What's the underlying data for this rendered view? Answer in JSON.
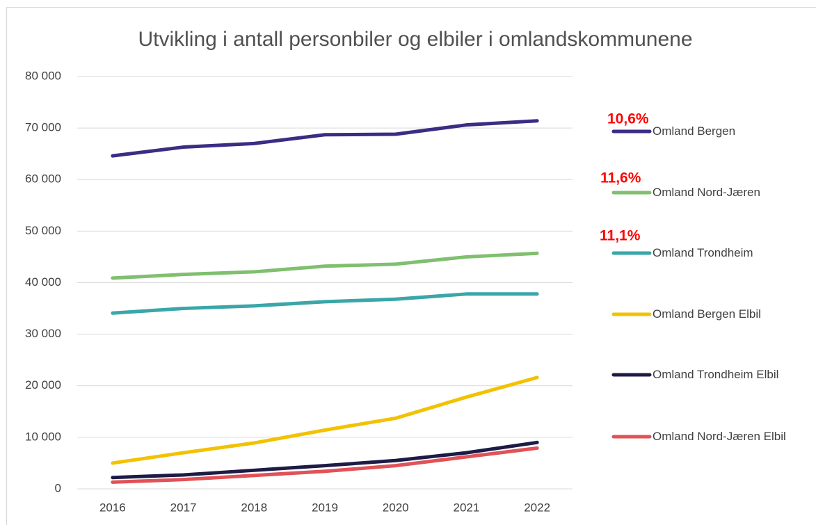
{
  "chart_data": {
    "type": "line",
    "title": "Utvikling i antall personbiler og elbiler i omlandskommunene",
    "categories": [
      "2016",
      "2017",
      "2018",
      "2019",
      "2020",
      "2021",
      "2022"
    ],
    "series": [
      {
        "name": "Omland Bergen",
        "color": "#3a2d84",
        "values": [
          64600,
          66300,
          67000,
          68700,
          68800,
          70600,
          71400
        ]
      },
      {
        "name": "Omland Nord-Jæren",
        "color": "#80bf6f",
        "values": [
          40900,
          41600,
          42100,
          43200,
          43600,
          45000,
          45700
        ]
      },
      {
        "name": "Omland Trondheim",
        "color": "#3aa6a9",
        "values": [
          34100,
          35000,
          35500,
          36300,
          36800,
          37800,
          37800
        ]
      },
      {
        "name": "Omland Bergen Elbil",
        "color": "#f2c200",
        "values": [
          5000,
          7000,
          8900,
          11400,
          13700,
          17800,
          21600
        ]
      },
      {
        "name": "Omland Trondheim Elbil",
        "color": "#1d1b46",
        "values": [
          2200,
          2700,
          3600,
          4500,
          5500,
          7000,
          9000
        ]
      },
      {
        "name": "Omland Nord-Jæren Elbil",
        "color": "#e05257",
        "values": [
          1300,
          1800,
          2600,
          3400,
          4500,
          6200,
          7900
        ]
      }
    ],
    "annotations": [
      "10,6%",
      "11,6%",
      "11,1%"
    ],
    "ylim": [
      0,
      80000
    ],
    "yticks": [
      {
        "value": 0,
        "label": "0"
      },
      {
        "value": 10000,
        "label": "10 000"
      },
      {
        "value": 20000,
        "label": "20 000"
      },
      {
        "value": 30000,
        "label": "30 000"
      },
      {
        "value": 40000,
        "label": "40 000"
      },
      {
        "value": 50000,
        "label": "50 000"
      },
      {
        "value": 60000,
        "label": "60 000"
      },
      {
        "value": 70000,
        "label": "70 000"
      },
      {
        "value": 80000,
        "label": "80 000"
      }
    ],
    "grid": true,
    "legend": "right"
  }
}
